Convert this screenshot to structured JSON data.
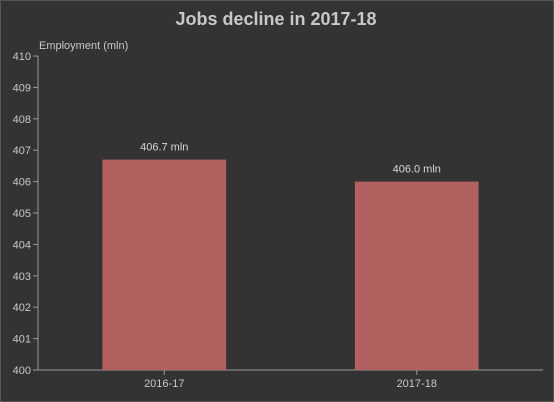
{
  "chart_data": {
    "type": "bar",
    "title": "Jobs decline in 2017-18",
    "xlabel": "",
    "ylabel": "Employment (mln)",
    "categories": [
      "2016-17",
      "2017-18"
    ],
    "values": [
      406.7,
      406.0
    ],
    "data_labels": [
      "406.7 mln",
      "406.0 mln"
    ],
    "ylim": [
      400,
      410
    ],
    "yticks": [
      400,
      401,
      402,
      403,
      404,
      405,
      406,
      407,
      408,
      409,
      410
    ],
    "bar_color": "#b36060",
    "axis_color": "#9a9a9a",
    "text_color": "#c8c8c8",
    "grid": false,
    "legend": "none"
  }
}
